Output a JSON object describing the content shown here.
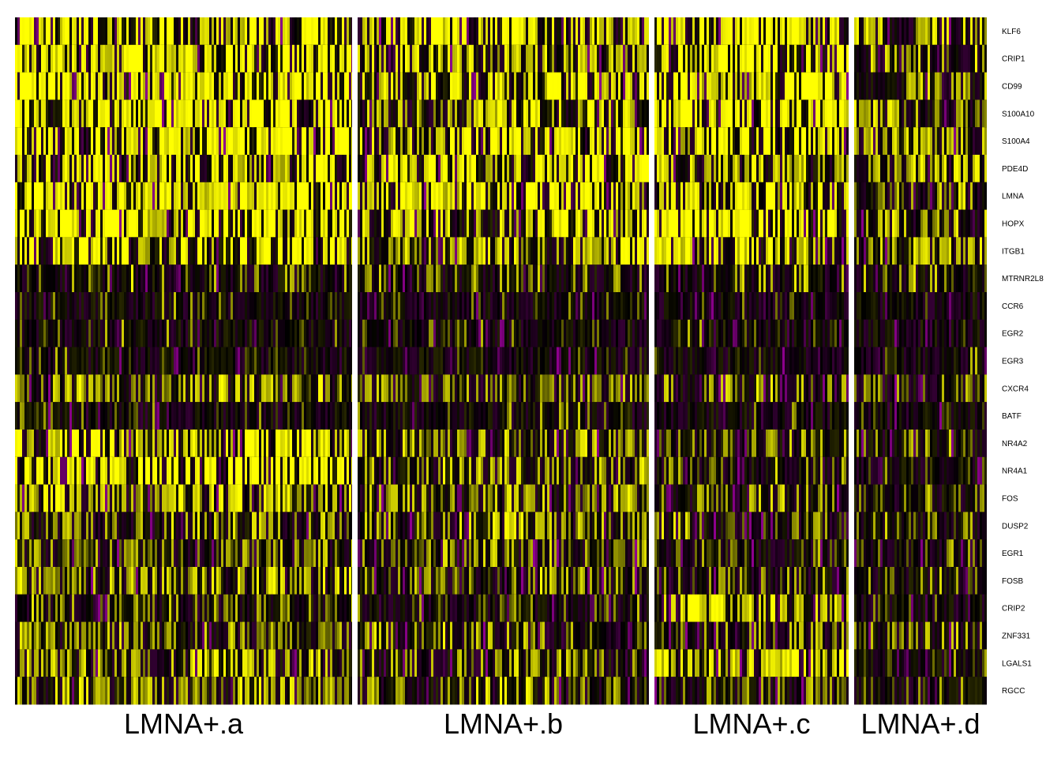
{
  "chart_data": {
    "type": "heatmap",
    "title": "",
    "xlabel": "",
    "ylabel": "",
    "genes": [
      "KLF6",
      "CRIP1",
      "CD99",
      "S100A10",
      "S100A4",
      "PDE4D",
      "LMNA",
      "HOPX",
      "ITGB1",
      "MTRNR2L8",
      "CCR6",
      "EGR2",
      "EGR3",
      "CXCR4",
      "BATF",
      "NR4A2",
      "NR4A1",
      "FOS",
      "DUSP2",
      "EGR1",
      "FOSB",
      "CRIP2",
      "ZNF331",
      "LGALS1",
      "RGCC"
    ],
    "clusters": [
      {
        "name": "LMNA+.a",
        "level": [
          0.72,
          0.75,
          0.68,
          0.74,
          0.73,
          0.66,
          0.75,
          0.75,
          0.66,
          0.32,
          0.14,
          0.16,
          0.1,
          0.4,
          0.12,
          0.62,
          0.7,
          0.48,
          0.4,
          0.38,
          0.48,
          0.22,
          0.38,
          0.42,
          0.44
        ],
        "density": [
          0.6,
          0.65,
          0.6,
          0.62,
          0.6,
          0.5,
          0.62,
          0.62,
          0.5,
          0.2,
          0.16,
          0.14,
          0.1,
          0.5,
          0.12,
          0.6,
          0.6,
          0.5,
          0.45,
          0.45,
          0.5,
          0.25,
          0.4,
          0.45,
          0.5
        ]
      },
      {
        "name": "LMNA+.b",
        "level": [
          0.62,
          0.62,
          0.56,
          0.56,
          0.58,
          0.66,
          0.64,
          0.62,
          0.6,
          0.36,
          0.12,
          0.1,
          0.09,
          0.36,
          0.12,
          0.4,
          0.38,
          0.36,
          0.36,
          0.32,
          0.34,
          0.22,
          0.3,
          0.34,
          0.34
        ],
        "density": [
          0.55,
          0.55,
          0.5,
          0.5,
          0.5,
          0.55,
          0.55,
          0.55,
          0.5,
          0.2,
          0.12,
          0.1,
          0.08,
          0.45,
          0.14,
          0.4,
          0.4,
          0.4,
          0.4,
          0.35,
          0.35,
          0.25,
          0.35,
          0.35,
          0.35
        ]
      },
      {
        "name": "LMNA+.c",
        "level": [
          0.72,
          0.66,
          0.66,
          0.76,
          0.7,
          0.6,
          0.66,
          0.76,
          0.68,
          0.3,
          0.1,
          0.08,
          0.06,
          0.3,
          0.12,
          0.26,
          0.22,
          0.26,
          0.3,
          0.22,
          0.26,
          0.7,
          0.24,
          0.62,
          0.3
        ],
        "density": [
          0.6,
          0.55,
          0.55,
          0.65,
          0.6,
          0.5,
          0.55,
          0.65,
          0.55,
          0.2,
          0.1,
          0.08,
          0.06,
          0.4,
          0.12,
          0.3,
          0.25,
          0.3,
          0.35,
          0.25,
          0.3,
          0.6,
          0.3,
          0.55,
          0.3
        ]
      },
      {
        "name": "LMNA+.d",
        "level": [
          0.48,
          0.42,
          0.4,
          0.42,
          0.46,
          0.48,
          0.4,
          0.48,
          0.46,
          0.3,
          0.06,
          0.04,
          0.04,
          0.3,
          0.1,
          0.22,
          0.16,
          0.22,
          0.24,
          0.16,
          0.24,
          0.1,
          0.2,
          0.24,
          0.22
        ],
        "density": [
          0.45,
          0.4,
          0.4,
          0.4,
          0.45,
          0.45,
          0.4,
          0.45,
          0.45,
          0.2,
          0.06,
          0.04,
          0.04,
          0.4,
          0.1,
          0.25,
          0.2,
          0.25,
          0.3,
          0.2,
          0.25,
          0.08,
          0.25,
          0.25,
          0.25
        ]
      }
    ],
    "colorscale": {
      "low": "#ff00ff",
      "mid": "#000000",
      "high": "#ffff00"
    },
    "legend": "none",
    "grid": false
  }
}
